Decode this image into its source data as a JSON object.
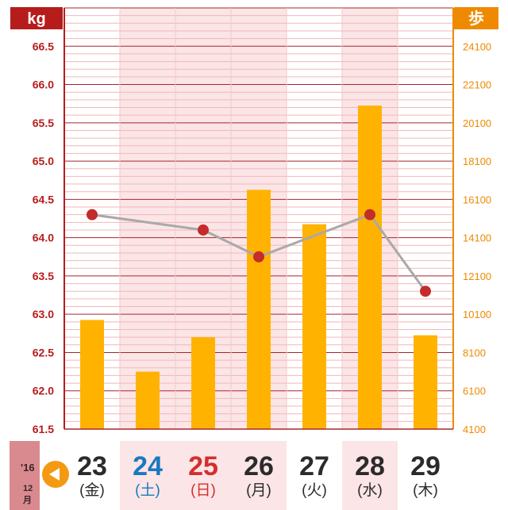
{
  "chart_data": {
    "type": "bar+line",
    "categories": [
      "23",
      "24",
      "25",
      "26",
      "27",
      "28",
      "29"
    ],
    "left_axis": {
      "unit": "kg",
      "ticks": [
        "61.5",
        "62.0",
        "62.5",
        "63.0",
        "63.5",
        "64.0",
        "64.5",
        "65.0",
        "65.5",
        "66.0",
        "66.5"
      ],
      "range": [
        61.5,
        67.0
      ]
    },
    "right_axis": {
      "unit": "歩",
      "ticks": [
        "4100",
        "6100",
        "8100",
        "10100",
        "12100",
        "14100",
        "16100",
        "18100",
        "20100",
        "22100",
        "24100"
      ],
      "range": [
        4100,
        26100
      ]
    },
    "series": [
      {
        "kind": "bar",
        "axis": "right",
        "values": [
          9800,
          7100,
          8900,
          16600,
          14800,
          21000,
          9000
        ]
      },
      {
        "kind": "line",
        "axis": "left",
        "values": [
          64.3,
          null,
          64.1,
          63.75,
          null,
          64.3,
          63.3
        ]
      }
    ],
    "colors": {
      "bar": "#ffb300",
      "line": "#a9a9a9",
      "point": "#c42b2b",
      "left_axis": "#b71c1c",
      "right_axis": "#ef8a00",
      "shade": "#fbe5e6"
    }
  },
  "footer": {
    "year": "'16",
    "month": "12月",
    "days": [
      {
        "num": "23",
        "weekday": "(金)",
        "color": "#2b2b2b",
        "shaded": false
      },
      {
        "num": "24",
        "weekday": "(土)",
        "color": "#1a78c2",
        "shaded": true
      },
      {
        "num": "25",
        "weekday": "(日)",
        "color": "#d32f2f",
        "shaded": true
      },
      {
        "num": "26",
        "weekday": "(月)",
        "color": "#2b2b2b",
        "shaded": true
      },
      {
        "num": "27",
        "weekday": "(火)",
        "color": "#2b2b2b",
        "shaded": false
      },
      {
        "num": "28",
        "weekday": "(水)",
        "color": "#2b2b2b",
        "shaded": true
      },
      {
        "num": "29",
        "weekday": "(木)",
        "color": "#2b2b2b",
        "shaded": false
      }
    ]
  }
}
